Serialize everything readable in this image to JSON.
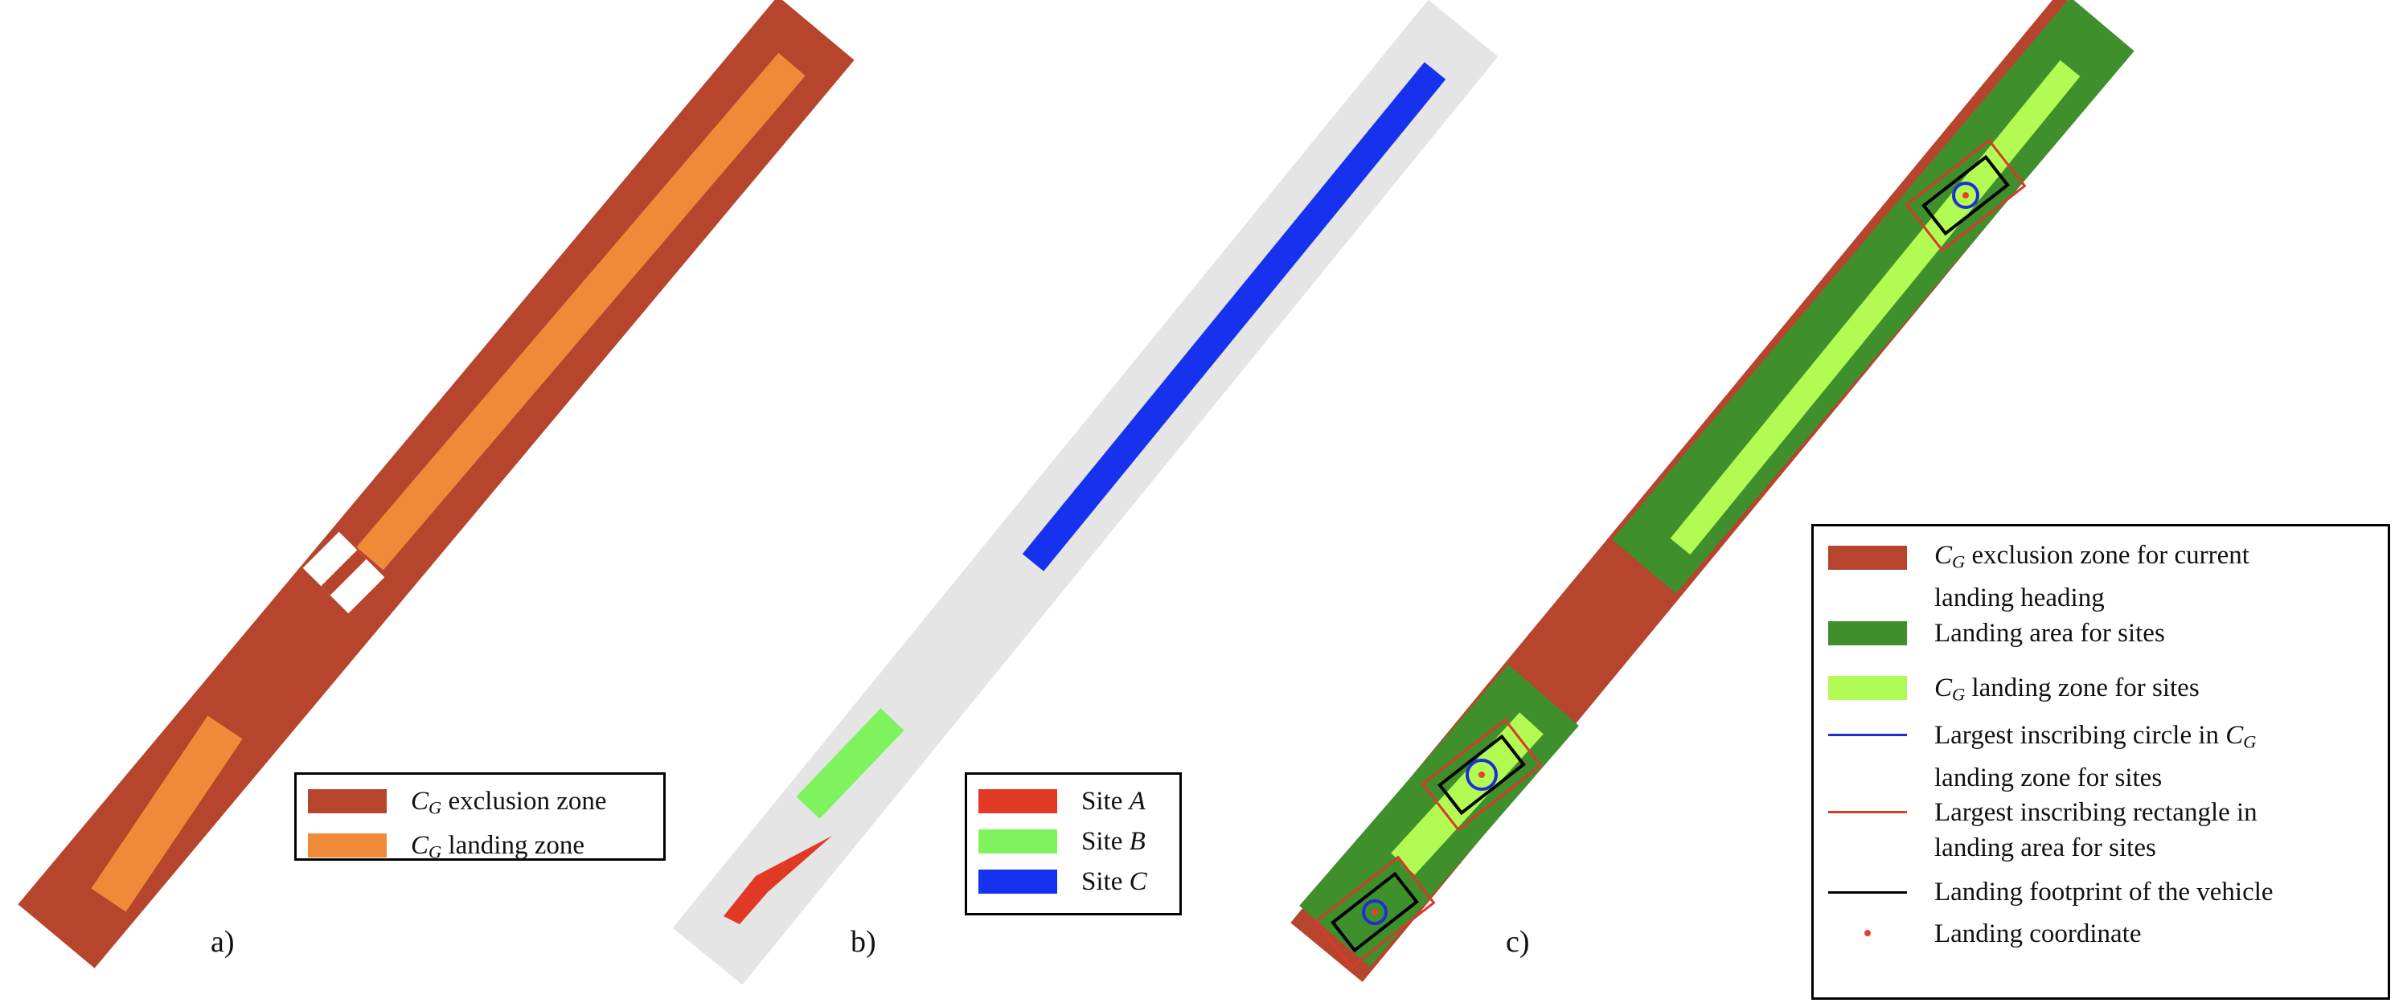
{
  "colors": {
    "exclusion": "#b7452e",
    "landing_orange": "#f08a38",
    "background_gray": "#e5e5e5",
    "site_a": "#e03a24",
    "site_b": "#7ef35e",
    "site_c": "#1732ee",
    "landing_area_green": "#3f8f2d",
    "landing_zone_lime": "#b2fb52",
    "circle_blue": "#1e2fd8",
    "rect_red": "#d93a2c",
    "footprint_black": "#000000",
    "coord_dot": "#e8402a"
  },
  "panel_labels": {
    "a": "a)",
    "b": "b)",
    "c": "c)"
  },
  "legend_a": {
    "items": [
      {
        "sym": "C",
        "sub": "G",
        "text": " exclusion zone",
        "swatch": "box",
        "color": "#b7452e"
      },
      {
        "sym": "C",
        "sub": "G",
        "text": " landing zone",
        "swatch": "box",
        "color": "#f08a38"
      }
    ]
  },
  "legend_b": {
    "items": [
      {
        "prefix": "Site ",
        "it": "A",
        "swatch": "box",
        "color": "#e03a24"
      },
      {
        "prefix": "Site ",
        "it": "B",
        "swatch": "box",
        "color": "#7ef35e"
      },
      {
        "prefix": "Site ",
        "it": "C",
        "swatch": "box",
        "color": "#1732ee"
      }
    ]
  },
  "legend_c": {
    "items": [
      {
        "swatch": "box",
        "color": "#b7452e",
        "line1_sym": "C",
        "line1_sub": "G",
        "line1": " exclusion zone for current",
        "line2": "landing heading"
      },
      {
        "swatch": "box",
        "color": "#3f8f2d",
        "line1": "Landing area for sites"
      },
      {
        "swatch": "box",
        "color": "#b2fb52",
        "line1_sym": "C",
        "line1_sub": "G",
        "line1": " landing zone for sites"
      },
      {
        "swatch": "line",
        "color": "#1e2fd8",
        "line1": "Largest inscribing circle in ",
        "line1_tail_sym": "C",
        "line1_tail_sub": "G",
        "line2": "landing zone for sites"
      },
      {
        "swatch": "line",
        "color": "#d93a2c",
        "line1": "Largest inscribing rectangle in",
        "line2": "landing area for sites"
      },
      {
        "swatch": "line",
        "color": "#000000",
        "line1": "Landing footprint of the vehicle"
      },
      {
        "swatch": "dot",
        "color": "#e8402a",
        "line1": "Landing coordinate"
      }
    ]
  }
}
